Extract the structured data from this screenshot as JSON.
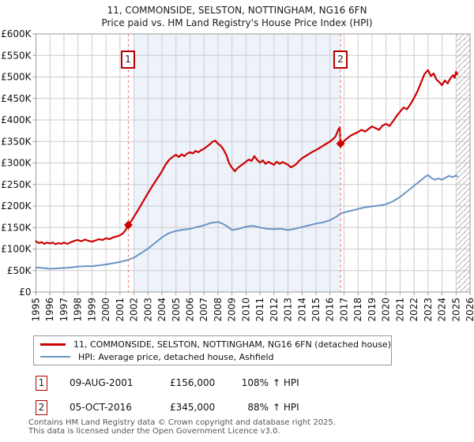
{
  "title": {
    "line1": "11, COMMONSIDE, SELSTON, NOTTINGHAM, NG16 6FN",
    "line2": "Price paid vs. HM Land Registry's House Price Index (HPI)"
  },
  "chart_data": {
    "type": "line",
    "x_range": [
      1995,
      2026
    ],
    "y_range_k": [
      0,
      600
    ],
    "grid": true,
    "x_ticks": [
      1995,
      1996,
      1997,
      1998,
      1999,
      2000,
      2001,
      2002,
      2003,
      2004,
      2005,
      2006,
      2007,
      2008,
      2009,
      2010,
      2011,
      2012,
      2013,
      2014,
      2015,
      2016,
      2017,
      2018,
      2019,
      2020,
      2021,
      2022,
      2023,
      2024,
      2025,
      2026
    ],
    "y_ticks": [
      {
        "v": 0,
        "label": "£0"
      },
      {
        "v": 50,
        "label": "£50K"
      },
      {
        "v": 100,
        "label": "£100K"
      },
      {
        "v": 150,
        "label": "£150K"
      },
      {
        "v": 200,
        "label": "£200K"
      },
      {
        "v": 250,
        "label": "£250K"
      },
      {
        "v": 300,
        "label": "£300K"
      },
      {
        "v": 350,
        "label": "£350K"
      },
      {
        "v": 400,
        "label": "£400K"
      },
      {
        "v": 450,
        "label": "£450K"
      },
      {
        "v": 500,
        "label": "£500K"
      },
      {
        "v": 550,
        "label": "£550K"
      },
      {
        "v": 600,
        "label": "£600K"
      }
    ],
    "shaded_span": {
      "from": 2002.0,
      "to": 2016.75,
      "color": "#eef2fa"
    },
    "future_hatch": {
      "from": 2025.0,
      "to": 2026
    },
    "series": [
      {
        "name": "11, COMMONSIDE, SELSTON, NOTTINGHAM, NG16 6FN (detached house)",
        "color": "#cc0000",
        "width": 2.2,
        "points": [
          [
            1995.0,
            118
          ],
          [
            1995.2,
            114
          ],
          [
            1995.4,
            116
          ],
          [
            1995.6,
            112
          ],
          [
            1995.8,
            115
          ],
          [
            1996.0,
            113
          ],
          [
            1996.2,
            115
          ],
          [
            1996.4,
            111
          ],
          [
            1996.6,
            114
          ],
          [
            1996.8,
            112
          ],
          [
            1997.0,
            115
          ],
          [
            1997.25,
            112
          ],
          [
            1997.5,
            116
          ],
          [
            1997.75,
            119
          ],
          [
            1998.0,
            121
          ],
          [
            1998.25,
            118
          ],
          [
            1998.5,
            122
          ],
          [
            1998.75,
            119
          ],
          [
            1999.0,
            117
          ],
          [
            1999.25,
            120
          ],
          [
            1999.5,
            123
          ],
          [
            1999.75,
            121
          ],
          [
            2000.0,
            125
          ],
          [
            2000.25,
            123
          ],
          [
            2000.5,
            127
          ],
          [
            2000.75,
            129
          ],
          [
            2001.0,
            132
          ],
          [
            2001.2,
            136
          ],
          [
            2001.4,
            144
          ],
          [
            2001.6,
            156
          ],
          [
            2001.8,
            165
          ],
          [
            2002.0,
            175
          ],
          [
            2002.25,
            188
          ],
          [
            2002.5,
            202
          ],
          [
            2002.75,
            216
          ],
          [
            2003.0,
            230
          ],
          [
            2003.25,
            243
          ],
          [
            2003.5,
            256
          ],
          [
            2003.75,
            268
          ],
          [
            2004.0,
            281
          ],
          [
            2004.25,
            296
          ],
          [
            2004.5,
            307
          ],
          [
            2004.75,
            314
          ],
          [
            2005.0,
            319
          ],
          [
            2005.2,
            314
          ],
          [
            2005.4,
            320
          ],
          [
            2005.6,
            316
          ],
          [
            2005.8,
            322
          ],
          [
            2006.0,
            325
          ],
          [
            2006.2,
            322
          ],
          [
            2006.4,
            328
          ],
          [
            2006.6,
            325
          ],
          [
            2006.8,
            330
          ],
          [
            2007.0,
            333
          ],
          [
            2007.2,
            338
          ],
          [
            2007.4,
            343
          ],
          [
            2007.6,
            349
          ],
          [
            2007.8,
            352
          ],
          [
            2008.0,
            345
          ],
          [
            2008.2,
            340
          ],
          [
            2008.4,
            331
          ],
          [
            2008.6,
            318
          ],
          [
            2008.8,
            299
          ],
          [
            2009.0,
            289
          ],
          [
            2009.2,
            281
          ],
          [
            2009.4,
            288
          ],
          [
            2009.6,
            293
          ],
          [
            2009.8,
            298
          ],
          [
            2010.0,
            303
          ],
          [
            2010.2,
            308
          ],
          [
            2010.4,
            305
          ],
          [
            2010.6,
            316
          ],
          [
            2010.8,
            307
          ],
          [
            2011.0,
            301
          ],
          [
            2011.2,
            306
          ],
          [
            2011.4,
            298
          ],
          [
            2011.6,
            303
          ],
          [
            2011.8,
            299
          ],
          [
            2012.0,
            296
          ],
          [
            2012.2,
            303
          ],
          [
            2012.4,
            298
          ],
          [
            2012.6,
            302
          ],
          [
            2012.8,
            299
          ],
          [
            2013.0,
            296
          ],
          [
            2013.2,
            290
          ],
          [
            2013.4,
            293
          ],
          [
            2013.6,
            298
          ],
          [
            2013.8,
            305
          ],
          [
            2014.0,
            311
          ],
          [
            2014.25,
            316
          ],
          [
            2014.5,
            321
          ],
          [
            2014.75,
            326
          ],
          [
            2015.0,
            330
          ],
          [
            2015.25,
            335
          ],
          [
            2015.5,
            340
          ],
          [
            2015.75,
            345
          ],
          [
            2016.0,
            350
          ],
          [
            2016.2,
            355
          ],
          [
            2016.4,
            362
          ],
          [
            2016.6,
            378
          ],
          [
            2016.7,
            383
          ],
          [
            2016.75,
            345
          ],
          [
            2017.0,
            351
          ],
          [
            2017.25,
            358
          ],
          [
            2017.5,
            364
          ],
          [
            2017.75,
            368
          ],
          [
            2018.0,
            372
          ],
          [
            2018.25,
            377
          ],
          [
            2018.5,
            373
          ],
          [
            2018.75,
            379
          ],
          [
            2019.0,
            385
          ],
          [
            2019.25,
            381
          ],
          [
            2019.5,
            377
          ],
          [
            2019.75,
            387
          ],
          [
            2020.0,
            391
          ],
          [
            2020.25,
            386
          ],
          [
            2020.5,
            397
          ],
          [
            2020.75,
            409
          ],
          [
            2021.0,
            419
          ],
          [
            2021.25,
            429
          ],
          [
            2021.5,
            425
          ],
          [
            2021.75,
            437
          ],
          [
            2022.0,
            451
          ],
          [
            2022.25,
            467
          ],
          [
            2022.5,
            487
          ],
          [
            2022.75,
            507
          ],
          [
            2023.0,
            516
          ],
          [
            2023.2,
            502
          ],
          [
            2023.4,
            508
          ],
          [
            2023.6,
            494
          ],
          [
            2023.8,
            488
          ],
          [
            2024.0,
            481
          ],
          [
            2024.2,
            492
          ],
          [
            2024.4,
            485
          ],
          [
            2024.6,
            497
          ],
          [
            2024.8,
            504
          ],
          [
            2024.9,
            498
          ],
          [
            2025.0,
            512
          ],
          [
            2025.1,
            506
          ]
        ]
      },
      {
        "name": "HPI: Average price, detached house, Ashfield",
        "color": "#6b94c4",
        "width": 2,
        "points": [
          [
            1995.0,
            57
          ],
          [
            1995.5,
            56
          ],
          [
            1996.0,
            54
          ],
          [
            1996.5,
            55
          ],
          [
            1997.0,
            56
          ],
          [
            1997.5,
            57
          ],
          [
            1998.0,
            59
          ],
          [
            1998.5,
            60
          ],
          [
            1999.0,
            60
          ],
          [
            1999.5,
            62
          ],
          [
            2000.0,
            64
          ],
          [
            2000.5,
            67
          ],
          [
            2001.0,
            70
          ],
          [
            2001.5,
            74
          ],
          [
            2002.0,
            80
          ],
          [
            2002.5,
            90
          ],
          [
            2003.0,
            101
          ],
          [
            2003.5,
            114
          ],
          [
            2004.0,
            127
          ],
          [
            2004.5,
            137
          ],
          [
            2005.0,
            142
          ],
          [
            2005.5,
            145
          ],
          [
            2006.0,
            147
          ],
          [
            2006.5,
            151
          ],
          [
            2007.0,
            155
          ],
          [
            2007.5,
            161
          ],
          [
            2008.0,
            163
          ],
          [
            2008.3,
            159
          ],
          [
            2008.6,
            154
          ],
          [
            2008.8,
            149
          ],
          [
            2009.0,
            144
          ],
          [
            2009.5,
            147
          ],
          [
            2010.0,
            152
          ],
          [
            2010.5,
            154
          ],
          [
            2011.0,
            150
          ],
          [
            2011.5,
            147
          ],
          [
            2012.0,
            146
          ],
          [
            2012.5,
            147
          ],
          [
            2013.0,
            144
          ],
          [
            2013.5,
            147
          ],
          [
            2014.0,
            151
          ],
          [
            2014.5,
            155
          ],
          [
            2015.0,
            159
          ],
          [
            2015.5,
            162
          ],
          [
            2016.0,
            167
          ],
          [
            2016.5,
            176
          ],
          [
            2016.75,
            183
          ],
          [
            2017.0,
            185
          ],
          [
            2017.5,
            189
          ],
          [
            2018.0,
            193
          ],
          [
            2018.5,
            197
          ],
          [
            2019.0,
            199
          ],
          [
            2019.5,
            201
          ],
          [
            2020.0,
            204
          ],
          [
            2020.5,
            211
          ],
          [
            2021.0,
            221
          ],
          [
            2021.5,
            234
          ],
          [
            2022.0,
            247
          ],
          [
            2022.5,
            260
          ],
          [
            2022.8,
            268
          ],
          [
            2023.0,
            272
          ],
          [
            2023.25,
            265
          ],
          [
            2023.5,
            261
          ],
          [
            2023.75,
            264
          ],
          [
            2024.0,
            261
          ],
          [
            2024.25,
            266
          ],
          [
            2024.5,
            270
          ],
          [
            2024.75,
            267
          ],
          [
            2025.0,
            271
          ],
          [
            2025.1,
            269
          ]
        ]
      }
    ],
    "markers": [
      {
        "num": "1",
        "year": 2001.6,
        "value_k": 156
      },
      {
        "num": "2",
        "year": 2016.75,
        "value_k": 345
      }
    ],
    "colors": {
      "grid": "#cccccc",
      "border": "#999999",
      "dashed_marker_line": "#f07d7d",
      "hatch": "#bbbbbb"
    }
  },
  "legend": {
    "items": [
      {
        "label": "11, COMMONSIDE, SELSTON, NOTTINGHAM, NG16 6FN (detached house)",
        "color": "#cc0000"
      },
      {
        "label": "HPI: Average price, detached house, Ashfield",
        "color": "#6b94c4"
      }
    ]
  },
  "annotations": [
    {
      "num": "1",
      "date": "09-AUG-2001",
      "price": "£156,000",
      "pct": "108%",
      "rel": "↑ HPI"
    },
    {
      "num": "2",
      "date": "05-OCT-2016",
      "price": "£345,000",
      "pct": "88%",
      "rel": "↑ HPI"
    }
  ],
  "footer": {
    "line1": "Contains HM Land Registry data © Crown copyright and database right 2025.",
    "line2": "This data is licensed under the Open Government Licence v3.0."
  }
}
